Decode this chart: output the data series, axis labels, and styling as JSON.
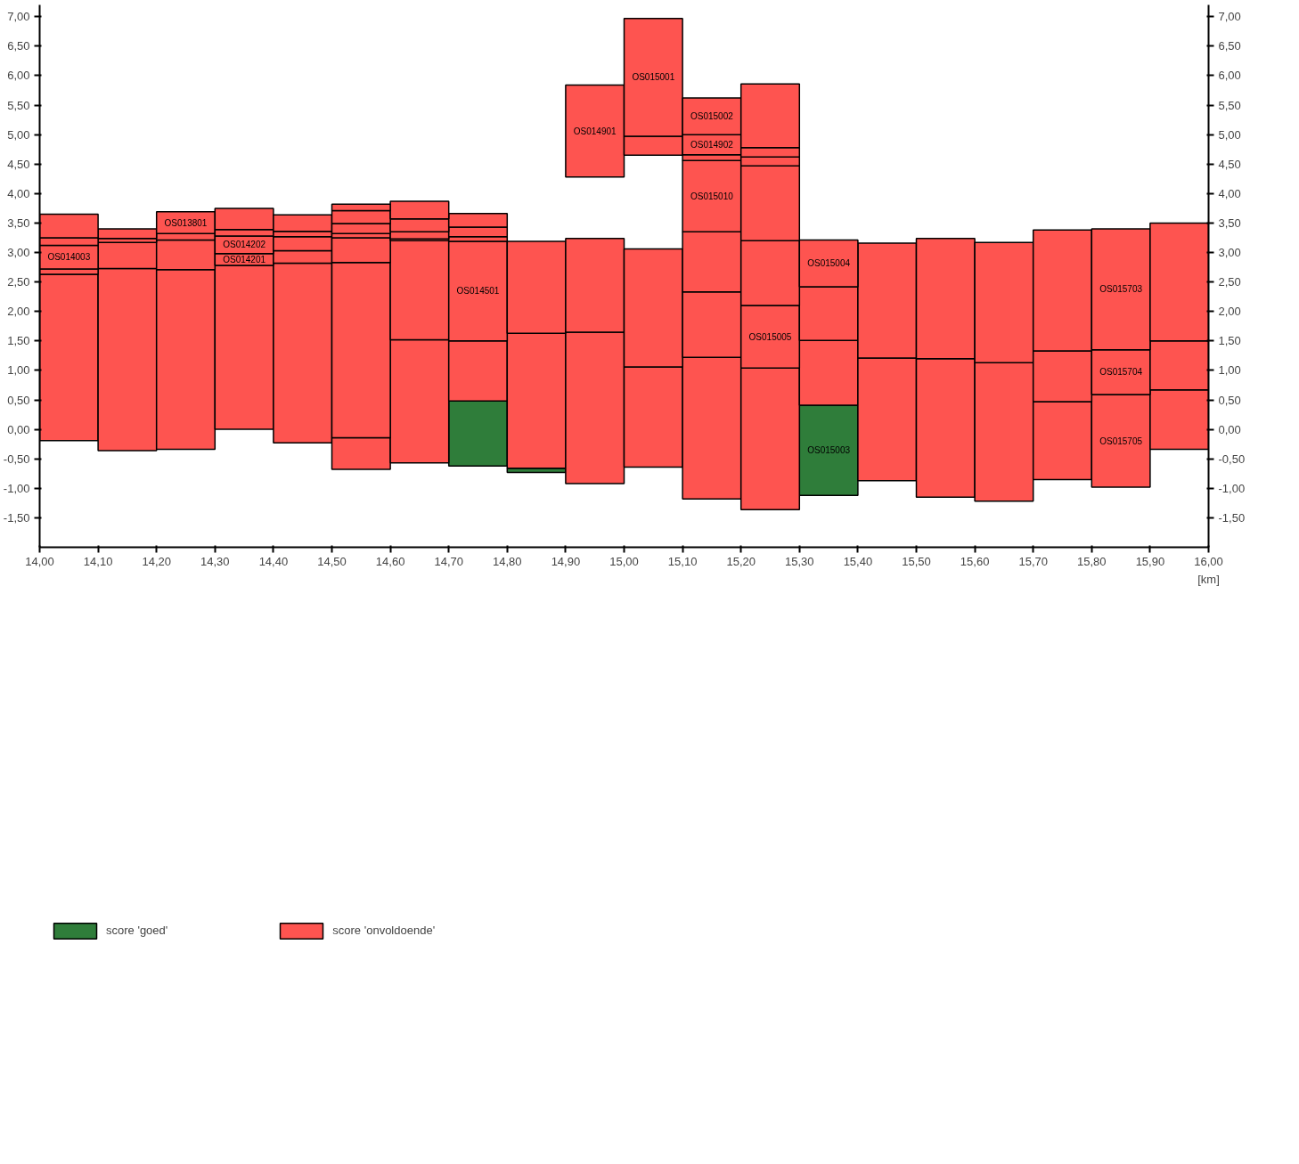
{
  "chart_data": {
    "type": "bar",
    "xlabel": "[km]",
    "xlim": [
      14,
      16
    ],
    "ylim": [
      -2,
      7.2
    ],
    "y2lim": [
      -2,
      7.2
    ],
    "xticks": [
      {
        "value": 14.0,
        "label": "14,00"
      },
      {
        "value": 14.1,
        "label": "14,10"
      },
      {
        "value": 14.2,
        "label": "14,20"
      },
      {
        "value": 14.3,
        "label": "14,30"
      },
      {
        "value": 14.4,
        "label": "14,40"
      },
      {
        "value": 14.5,
        "label": "14,50"
      },
      {
        "value": 14.6,
        "label": "14,60"
      },
      {
        "value": 14.7,
        "label": "14,70"
      },
      {
        "value": 14.8,
        "label": "14,80"
      },
      {
        "value": 14.9,
        "label": "14,90"
      },
      {
        "value": 15.0,
        "label": "15,00"
      },
      {
        "value": 15.1,
        "label": "15,10"
      },
      {
        "value": 15.2,
        "label": "15,20"
      },
      {
        "value": 15.3,
        "label": "15,30"
      },
      {
        "value": 15.4,
        "label": "15,40"
      },
      {
        "value": 15.5,
        "label": "15,50"
      },
      {
        "value": 15.6,
        "label": "15,60"
      },
      {
        "value": 15.7,
        "label": "15,70"
      },
      {
        "value": 15.8,
        "label": "15,80"
      },
      {
        "value": 15.9,
        "label": "15,90"
      },
      {
        "value": 16.0,
        "label": "16,00"
      }
    ],
    "yticks": [
      {
        "value": -1.5,
        "label": "-1,50"
      },
      {
        "value": -1.0,
        "label": "-1,00"
      },
      {
        "value": -0.5,
        "label": "-0,50"
      },
      {
        "value": 0.0,
        "label": "0,00"
      },
      {
        "value": 0.5,
        "label": "0,50"
      },
      {
        "value": 1.0,
        "label": "1,00"
      },
      {
        "value": 1.5,
        "label": "1,50"
      },
      {
        "value": 2.0,
        "label": "2,00"
      },
      {
        "value": 2.5,
        "label": "2,50"
      },
      {
        "value": 3.0,
        "label": "3,00"
      },
      {
        "value": 3.5,
        "label": "3,50"
      },
      {
        "value": 4.0,
        "label": "4,00"
      },
      {
        "value": 4.5,
        "label": "4,50"
      },
      {
        "value": 5.0,
        "label": "5,00"
      },
      {
        "value": 5.5,
        "label": "5,50"
      },
      {
        "value": 6.0,
        "label": "6,00"
      },
      {
        "value": 6.5,
        "label": "6,50"
      },
      {
        "value": 7.0,
        "label": "7,00"
      }
    ],
    "y2ticks": [
      {
        "value": -1.5,
        "label": "-1,50"
      },
      {
        "value": -1.0,
        "label": "-1,00"
      },
      {
        "value": -0.5,
        "label": "-0,50"
      },
      {
        "value": 0.0,
        "label": "0,00"
      },
      {
        "value": 0.5,
        "label": "0,50"
      },
      {
        "value": 1.0,
        "label": "1,00"
      },
      {
        "value": 1.5,
        "label": "1,50"
      },
      {
        "value": 2.0,
        "label": "2,00"
      },
      {
        "value": 2.5,
        "label": "2,50"
      },
      {
        "value": 3.0,
        "label": "3,00"
      },
      {
        "value": 3.5,
        "label": "3,50"
      },
      {
        "value": 4.0,
        "label": "4,00"
      },
      {
        "value": 4.5,
        "label": "4,50"
      },
      {
        "value": 5.0,
        "label": "5,00"
      },
      {
        "value": 5.5,
        "label": "5,50"
      },
      {
        "value": 6.0,
        "label": "6,00"
      },
      {
        "value": 6.5,
        "label": "6,50"
      },
      {
        "value": 7.0,
        "label": "7,00"
      }
    ],
    "legend": "bottom left",
    "series": [
      {
        "name": "score 'goed'",
        "color": "#2f7d3a",
        "x": [
          14.75,
          14.85,
          15.35
        ],
        "base": [
          -0.62,
          -0.73,
          -1.12
        ],
        "values": [
          1.1,
          0.07,
          1.53
        ],
        "value_labels": [
          null,
          null,
          "OS015003"
        ]
      },
      {
        "name": "score 'onvoldoende'",
        "color": "#fe5450",
        "x": [
          14.05,
          14.15,
          14.25,
          14.35,
          14.45,
          14.55,
          14.65,
          14.75,
          14.85,
          14.95,
          15.05,
          15.15,
          15.25,
          15.35,
          15.45,
          15.55,
          15.65,
          15.75,
          15.85,
          15.95
        ],
        "base": [
          -0.19,
          -0.36,
          -0.34,
          0.0,
          -0.23,
          -0.68,
          -0.57,
          0.48,
          -0.66,
          -0.92,
          -0.64,
          -1.18,
          -1.36,
          0.41,
          -0.87,
          -1.15,
          -1.22,
          -0.85,
          -0.98,
          -0.34
        ],
        "values": [
          2.82,
          3.09,
          3.05,
          2.78,
          3.05,
          0.54,
          2.09,
          1.02,
          2.29,
          2.57,
          1.7,
          2.4,
          2.4,
          1.1,
          2.08,
          2.35,
          2.35,
          1.32,
          1.57,
          1.01
        ],
        "value_labels": [
          null,
          null,
          null,
          null,
          null,
          null,
          null,
          null,
          null,
          null,
          null,
          null,
          null,
          null,
          null,
          null,
          null,
          null,
          "OS015705",
          null
        ]
      },
      {
        "color": "#fe5450",
        "x": [
          14.05,
          14.15,
          14.25,
          14.35,
          14.45,
          14.55,
          14.65,
          14.75,
          14.85,
          14.95,
          15.05,
          15.15,
          15.25,
          15.35,
          15.45,
          15.55,
          15.65,
          15.75,
          15.85,
          15.95
        ],
        "base": [
          2.63,
          2.73,
          2.71,
          2.78,
          2.82,
          -0.14,
          1.52,
          1.5,
          1.63,
          1.65,
          1.06,
          1.22,
          1.04,
          1.51,
          1.21,
          1.2,
          1.13,
          0.47,
          0.59,
          0.67
        ],
        "values": [
          0.09,
          0.44,
          0.5,
          0.2,
          0.21,
          2.97,
          1.68,
          1.69,
          1.56,
          1.59,
          2.0,
          1.11,
          1.06,
          0.91,
          1.95,
          2.04,
          2.04,
          0.86,
          0.76,
          0.83
        ],
        "value_labels": [
          null,
          null,
          null,
          "OS014201",
          null,
          null,
          null,
          "OS014501",
          null,
          null,
          null,
          null,
          "OS015005",
          null,
          null,
          null,
          null,
          null,
          "OS015704",
          null
        ]
      },
      {
        "color": "#fe5450",
        "x": [
          14.05,
          14.15,
          14.25,
          14.35,
          14.45,
          14.55,
          14.65,
          14.75,
          14.95,
          15.05,
          15.15,
          15.25,
          15.35,
          15.75,
          15.85,
          15.95
        ],
        "base": [
          2.72,
          3.17,
          3.21,
          2.98,
          3.03,
          2.83,
          3.2,
          3.19,
          4.28,
          4.65,
          2.33,
          2.1,
          2.42,
          1.33,
          1.35,
          1.5
        ],
        "values": [
          0.4,
          0.07,
          0.11,
          0.3,
          0.24,
          0.42,
          0.03,
          0.08,
          1.56,
          0.32,
          1.02,
          1.1,
          0.79,
          2.05,
          2.05,
          2.0
        ],
        "value_labels": [
          "OS014003",
          null,
          null,
          "OS014202",
          null,
          null,
          null,
          null,
          "OS014901",
          null,
          null,
          null,
          "OS015004",
          null,
          "OS015703",
          null
        ]
      },
      {
        "color": "#fe5450",
        "x": [
          14.05,
          14.15,
          14.25,
          14.35,
          14.45,
          14.55,
          14.65,
          14.75,
          15.05,
          15.15,
          15.25
        ],
        "base": [
          3.12,
          3.24,
          3.32,
          3.28,
          3.27,
          3.25,
          3.23,
          3.27,
          4.97,
          3.35,
          3.2
        ],
        "values": [
          0.13,
          0.16,
          0.37,
          0.11,
          0.09,
          0.07,
          0.12,
          0.16,
          2.0,
          1.21,
          1.27
        ],
        "value_labels": [
          null,
          null,
          "OS013801",
          null,
          null,
          null,
          null,
          null,
          "OS015001",
          "OS015010",
          null
        ]
      },
      {
        "color": "#fe5450",
        "x": [
          14.05,
          14.35,
          14.45,
          14.55,
          14.65,
          14.75,
          15.15,
          15.25
        ],
        "base": [
          3.25,
          3.39,
          3.36,
          3.32,
          3.35,
          3.43,
          4.56,
          4.47
        ],
        "values": [
          0.4,
          0.36,
          0.28,
          0.17,
          0.22,
          0.23,
          0.1,
          0.15
        ]
      },
      {
        "color": "#fe5450",
        "x": [
          14.55,
          14.65,
          15.15,
          15.25
        ],
        "base": [
          3.49,
          3.57,
          4.66,
          4.62
        ],
        "values": [
          0.22,
          0.3,
          0.34,
          0.16
        ],
        "value_labels": [
          null,
          null,
          "OS014902",
          null
        ]
      },
      {
        "color": "#fe5450",
        "x": [
          14.55,
          15.15,
          15.25
        ],
        "base": [
          3.71,
          5.0,
          4.78
        ],
        "values": [
          0.11,
          0.62,
          1.08
        ],
        "value_labels": [
          null,
          "OS015002",
          null
        ]
      }
    ]
  }
}
